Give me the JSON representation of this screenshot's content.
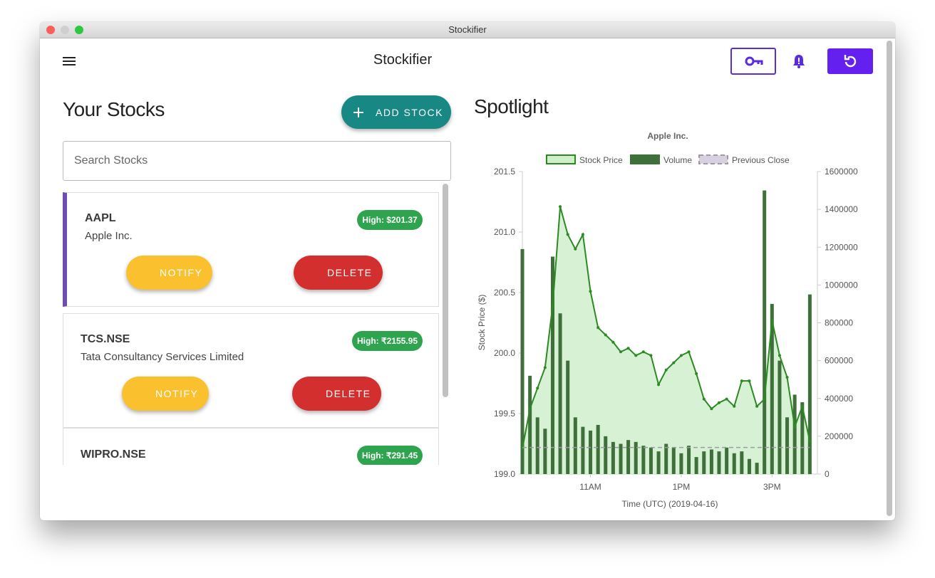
{
  "window": {
    "title": "Stockifier"
  },
  "header": {
    "title": "Stockifier"
  },
  "stocks_panel": {
    "title": "Your Stocks",
    "add_button": "ADD STOCK",
    "search_placeholder": "Search Stocks",
    "stocks": [
      {
        "symbol": "AAPL",
        "name": "Apple Inc.",
        "high": "High: $201.37",
        "notify": "NOTIFY",
        "delete": "DELETE"
      },
      {
        "symbol": "TCS.NSE",
        "name": "Tata Consultancy Services Limited",
        "high": "High: ₹2155.95",
        "notify": "NOTIFY",
        "delete": "DELETE"
      },
      {
        "symbol": "WIPRO.NSE",
        "high": "High: ₹291.45"
      }
    ]
  },
  "spotlight": {
    "title": "Spotlight"
  },
  "chart_data": {
    "type": "line",
    "title": "Apple Inc.",
    "y_label": "Stock Price ($)",
    "x_label": "Time (UTC) (2019-04-16)",
    "x": [
      9.5,
      9.667,
      9.833,
      10,
      10.167,
      10.333,
      10.5,
      10.667,
      10.833,
      11,
      11.167,
      11.333,
      11.5,
      11.667,
      11.833,
      12,
      12.167,
      12.333,
      12.5,
      12.667,
      12.833,
      13,
      13.167,
      13.333,
      13.5,
      13.667,
      13.833,
      14,
      14.167,
      14.333,
      14.5,
      14.667,
      14.833,
      15,
      15.167,
      15.333,
      15.5,
      15.667,
      15.833
    ],
    "xlim": [
      9.5,
      16
    ],
    "xticks": [
      {
        "value": 11,
        "label": "11AM"
      },
      {
        "value": 13,
        "label": "1PM"
      },
      {
        "value": 15,
        "label": "3PM"
      }
    ],
    "ylim": [
      199,
      201.5
    ],
    "yticks": [
      {
        "value": 199,
        "label": "199.0"
      },
      199.5,
      {
        "value": 200,
        "label": "200.0"
      },
      200.5,
      {
        "value": 201,
        "label": "201.0"
      },
      201.5
    ],
    "y2lim": [
      0,
      1600000
    ],
    "y2ticks": [
      0,
      200000,
      400000,
      600000,
      800000,
      1000000,
      1200000,
      1400000,
      1600000
    ],
    "series": [
      {
        "name": "Stock Price",
        "color": "#2b8a22",
        "fill": "#cfeecb",
        "values": [
          199.21,
          199.54,
          199.71,
          199.88,
          200.39,
          201.21,
          200.98,
          200.86,
          200.98,
          200.51,
          200.21,
          200.15,
          200.09,
          200.01,
          200.04,
          199.98,
          200.01,
          199.98,
          199.74,
          199.86,
          199.92,
          199.98,
          200.01,
          199.83,
          199.62,
          199.54,
          199.59,
          199.62,
          199.56,
          199.77,
          199.77,
          199.56,
          199.62,
          200.27,
          199.98,
          199.8,
          199.39,
          199.56,
          199.27
        ]
      },
      {
        "name": "Volume",
        "color": "#3f6f3a",
        "axis": "y2",
        "values": [
          1190000,
          520000,
          300000,
          240000,
          1150000,
          850000,
          600000,
          300000,
          250000,
          230000,
          260000,
          200000,
          170000,
          160000,
          180000,
          170000,
          150000,
          140000,
          120000,
          160000,
          140000,
          110000,
          150000,
          90000,
          120000,
          130000,
          120000,
          140000,
          110000,
          120000,
          80000,
          60000,
          1500000,
          900000,
          600000,
          300000,
          420000,
          380000,
          950000
        ]
      },
      {
        "name": "Previous Close",
        "color": "#9e9aa6",
        "fill": "#d9d0e0",
        "values": [
          199.22,
          199.22,
          199.22,
          199.22,
          199.22,
          199.22,
          199.22,
          199.22,
          199.22,
          199.22,
          199.22,
          199.22,
          199.22,
          199.22,
          199.22,
          199.22,
          199.22,
          199.22,
          199.22,
          199.22,
          199.22,
          199.22,
          199.22,
          199.22,
          199.22,
          199.22,
          199.22,
          199.22,
          199.22,
          199.22,
          199.22,
          199.22,
          199.22,
          199.22,
          199.22,
          199.22,
          199.22,
          199.22,
          199.22
        ]
      }
    ]
  }
}
